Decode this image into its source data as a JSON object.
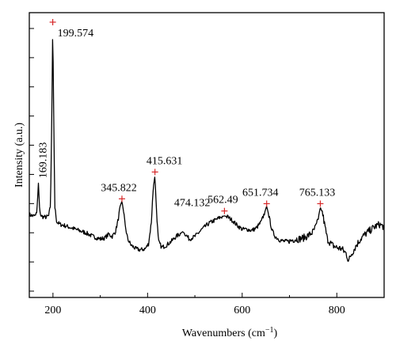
{
  "chart_data": {
    "type": "line",
    "xlabel": "Wavenumbers (cm",
    "xlabel_sup": "−1",
    "xlabel_close": ")",
    "ylabel": "Intensity (a.u.)",
    "xlim": [
      150,
      900
    ],
    "ylim": [
      0,
      1
    ],
    "x_ticks": [
      200,
      400,
      600,
      800
    ],
    "x_tick_labels": [
      "200",
      "400",
      "600",
      "800"
    ],
    "y_tick_count": 10,
    "grid": false,
    "peak_marker_color": "#d62728",
    "line_color": "#000000",
    "peaks": [
      {
        "x": 169.183,
        "label": "169.183",
        "y": 0.34,
        "marker": false
      },
      {
        "x": 199.574,
        "label": "199.574",
        "y": 1.0,
        "marker": true
      },
      {
        "x": 345.822,
        "label": "345.822",
        "y": 0.275,
        "marker": true
      },
      {
        "x": 415.631,
        "label": "415.631",
        "y": 0.385,
        "marker": true
      },
      {
        "x": 474.132,
        "label": "474.132",
        "y": 0.155,
        "marker": false
      },
      {
        "x": 562.49,
        "label": "562.49",
        "y": 0.225,
        "marker": true
      },
      {
        "x": 651.734,
        "label": "651.734",
        "y": 0.255,
        "marker": true
      },
      {
        "x": 765.133,
        "label": "765.133",
        "y": 0.255,
        "marker": true
      }
    ],
    "series": [
      {
        "x": [
          150,
          158,
          163,
          166,
          169.183,
          172,
          175,
          180,
          186,
          191,
          195,
          198,
          199.574,
          201,
          204,
          208,
          215,
          225,
          240,
          255,
          270,
          285,
          300,
          310,
          318,
          325,
          332,
          338,
          342,
          345.822,
          349,
          353,
          358,
          365,
          375,
          385,
          395,
          402,
          408,
          412,
          415.631,
          419,
          423,
          430,
          440,
          450,
          460,
          468,
          474.132,
          480,
          488,
          500,
          515,
          530,
          545,
          555,
          562.49,
          570,
          580,
          590,
          600,
          610,
          620,
          630,
          640,
          646,
          651.734,
          657,
          663,
          670,
          680,
          690,
          700,
          710,
          720,
          730,
          740,
          750,
          758,
          765.133,
          770,
          775,
          780,
          790,
          800,
          810,
          820,
          825,
          830,
          840,
          850,
          860,
          870,
          880,
          890,
          900
        ],
        "y": [
          0.21,
          0.205,
          0.205,
          0.22,
          0.34,
          0.225,
          0.205,
          0.2,
          0.2,
          0.205,
          0.25,
          0.7,
          1.0,
          0.72,
          0.24,
          0.18,
          0.17,
          0.165,
          0.155,
          0.145,
          0.135,
          0.12,
          0.11,
          0.115,
          0.13,
          0.12,
          0.14,
          0.19,
          0.245,
          0.265,
          0.225,
          0.16,
          0.11,
          0.085,
          0.07,
          0.065,
          0.07,
          0.09,
          0.18,
          0.32,
          0.37,
          0.22,
          0.1,
          0.075,
          0.085,
          0.1,
          0.12,
          0.13,
          0.14,
          0.13,
          0.11,
          0.12,
          0.15,
          0.175,
          0.19,
          0.2,
          0.205,
          0.2,
          0.185,
          0.165,
          0.15,
          0.15,
          0.145,
          0.155,
          0.18,
          0.21,
          0.245,
          0.2,
          0.145,
          0.12,
          0.105,
          0.1,
          0.1,
          0.11,
          0.11,
          0.115,
          0.125,
          0.14,
          0.17,
          0.24,
          0.215,
          0.16,
          0.11,
          0.085,
          0.075,
          0.07,
          0.05,
          0.02,
          0.045,
          0.08,
          0.11,
          0.13,
          0.145,
          0.16,
          0.17,
          0.16
        ]
      }
    ]
  }
}
